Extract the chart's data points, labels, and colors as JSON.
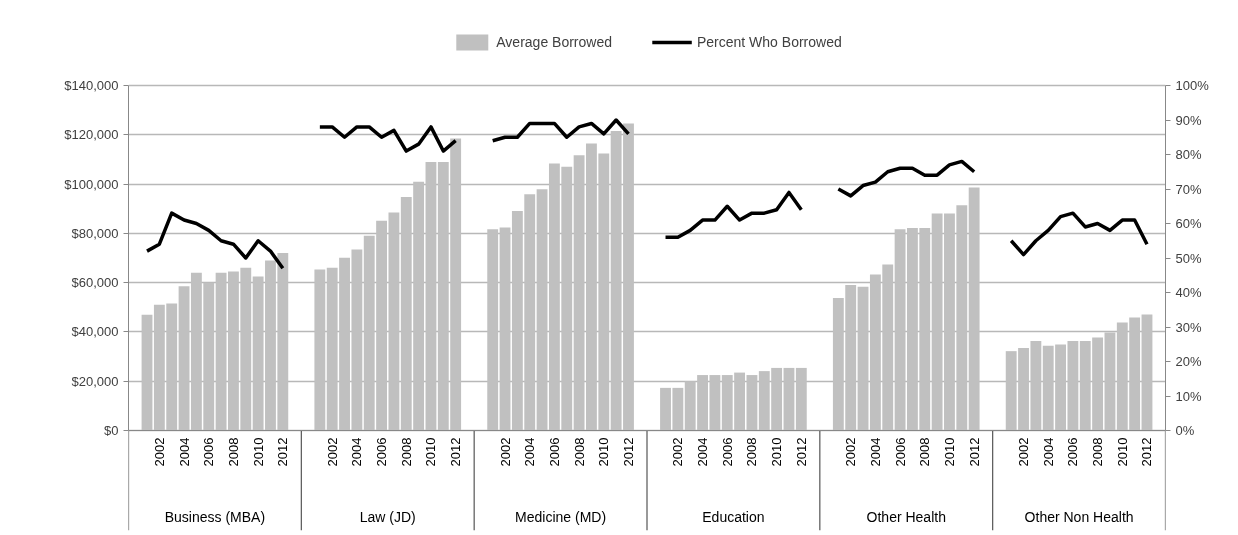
{
  "chart_data": {
    "type": "bar",
    "categories": [
      null,
      null,
      "2002",
      null,
      "2004",
      null,
      "2006",
      null,
      "2008",
      null,
      "2010",
      null,
      "2012",
      null,
      null,
      null,
      "2002",
      null,
      "2004",
      null,
      "2006",
      null,
      "2008",
      null,
      "2010",
      null,
      "2012",
      null,
      null,
      null,
      "2002",
      null,
      "2004",
      null,
      "2006",
      null,
      "2008",
      null,
      "2010",
      null,
      "2012",
      null,
      null,
      null,
      "2002",
      null,
      "2004",
      null,
      "2006",
      null,
      "2008",
      null,
      "2010",
      null,
      "2012",
      null,
      null,
      null,
      "2002",
      null,
      "2004",
      null,
      "2006",
      null,
      "2008",
      null,
      "2010",
      null,
      "2012",
      null,
      null,
      null,
      "2002",
      null,
      "2004",
      null,
      "2006",
      null,
      "2008",
      null,
      "2010",
      null,
      "2012",
      null
    ],
    "series": [
      {
        "name": "Average Borrowed",
        "color": "#c0c0c0",
        "values": [
          null,
          47000,
          51000,
          51500,
          58500,
          64000,
          60000,
          64000,
          64500,
          66000,
          62500,
          69000,
          72000,
          null,
          null,
          65300,
          66000,
          70100,
          73500,
          79000,
          85100,
          88500,
          94800,
          100900,
          109000,
          109000,
          118500,
          null,
          null,
          81700,
          82400,
          89100,
          95900,
          97900,
          108300,
          107000,
          111700,
          116500,
          112400,
          121500,
          124600,
          null,
          null,
          17300,
          17300,
          20000,
          22500,
          22500,
          22500,
          23500,
          22500,
          24100,
          25400,
          25400,
          25400,
          null,
          null,
          53800,
          59000,
          58300,
          63300,
          67400,
          81700,
          82200,
          82200,
          88100,
          88100,
          91400,
          98600,
          null,
          null,
          32200,
          33500,
          36300,
          34400,
          34900,
          36300,
          36300,
          37700,
          39800,
          43800,
          45900,
          47100,
          null
        ]
      },
      {
        "name": "Percent Who Borrowed",
        "type": "line",
        "axis": "y2",
        "color": "#000000",
        "values": [
          null,
          52,
          54,
          63,
          61,
          60,
          58,
          55,
          54,
          50,
          55,
          52,
          47,
          null,
          null,
          88,
          88,
          85,
          88,
          88,
          85,
          87,
          81,
          83,
          88,
          81,
          84,
          null,
          null,
          84,
          85,
          85,
          89,
          89,
          89,
          85,
          88,
          89,
          86,
          90,
          86,
          null,
          null,
          56,
          56,
          58,
          61,
          61,
          65,
          61,
          63,
          63,
          64,
          69,
          64,
          null,
          null,
          70,
          68,
          71,
          72,
          75,
          76,
          76,
          74,
          74,
          77,
          78,
          75,
          null,
          null,
          55,
          51,
          55,
          58,
          62,
          63,
          59,
          60,
          58,
          61,
          61,
          54,
          null
        ]
      }
    ],
    "ylim": [
      0,
      140000
    ],
    "yticks": [
      {
        "value": 0,
        "label": "$0"
      },
      {
        "value": 20000,
        "label": "$20,000"
      },
      {
        "value": 40000,
        "label": "$40,000"
      },
      {
        "value": 60000,
        "label": "$60,000"
      },
      {
        "value": 80000,
        "label": "$80,000"
      },
      {
        "value": 100000,
        "label": "$100,000"
      },
      {
        "value": 120000,
        "label": "$120,000"
      },
      {
        "value": 140000,
        "label": "$140,000"
      }
    ],
    "y2lim": [
      0,
      100
    ],
    "y2ticks": [
      {
        "value": 0,
        "label": "0%"
      },
      {
        "value": 10,
        "label": "10%"
      },
      {
        "value": 20,
        "label": "20%"
      },
      {
        "value": 30,
        "label": "30%"
      },
      {
        "value": 40,
        "label": "40%"
      },
      {
        "value": 50,
        "label": "50%"
      },
      {
        "value": 60,
        "label": "60%"
      },
      {
        "value": 70,
        "label": "70%"
      },
      {
        "value": 80,
        "label": "80%"
      },
      {
        "value": 90,
        "label": "90%"
      },
      {
        "value": 100,
        "label": "100%"
      }
    ],
    "grid": "y",
    "legend": "top",
    "annotations": [
      "Business (MBA)",
      "Law (JD)",
      "Medicine (MD)",
      "Education",
      "Other Health",
      "Other Non Health"
    ]
  }
}
